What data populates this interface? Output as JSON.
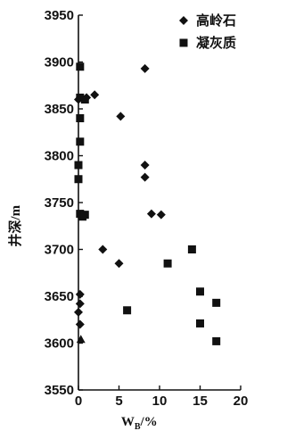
{
  "chart_data": {
    "type": "scatter",
    "ylabel": "井深/m",
    "xlabel": "W",
    "xlabel_sub": "B",
    "xlabel_unit": "/%",
    "ylim": [
      3550,
      3950
    ],
    "xlim": [
      0,
      20
    ],
    "x_ticks": [
      0,
      5,
      10,
      15,
      20
    ],
    "y_ticks": [
      3550,
      3600,
      3650,
      3700,
      3750,
      3800,
      3850,
      3900,
      3950
    ],
    "x_tick_labels": [
      "0",
      "5",
      "10",
      "15",
      "20"
    ],
    "y_tick_labels": [
      "3550",
      "3600",
      "3650",
      "3700",
      "3750",
      "3800",
      "3850",
      "3900",
      "3950"
    ],
    "legend_position": "top-right",
    "series": [
      {
        "name": "高岭石",
        "marker": "diamond",
        "points": [
          {
            "x": 8.2,
            "y": 3893
          },
          {
            "x": 2.0,
            "y": 3865
          },
          {
            "x": 1.0,
            "y": 3862
          },
          {
            "x": 0.0,
            "y": 3860
          },
          {
            "x": 5.2,
            "y": 3842
          },
          {
            "x": 8.2,
            "y": 3790
          },
          {
            "x": 8.2,
            "y": 3777
          },
          {
            "x": 9.0,
            "y": 3738
          },
          {
            "x": 10.2,
            "y": 3737
          },
          {
            "x": 3.0,
            "y": 3700
          },
          {
            "x": 5.0,
            "y": 3685
          },
          {
            "x": 0.2,
            "y": 3652
          },
          {
            "x": 0.2,
            "y": 3642
          },
          {
            "x": 0.0,
            "y": 3633
          },
          {
            "x": 0.2,
            "y": 3620
          }
        ]
      },
      {
        "name": "凝灰质",
        "marker": "square",
        "points": [
          {
            "x": 0.2,
            "y": 3895
          },
          {
            "x": 0.2,
            "y": 3862
          },
          {
            "x": 0.8,
            "y": 3860
          },
          {
            "x": 0.2,
            "y": 3840
          },
          {
            "x": 0.2,
            "y": 3815
          },
          {
            "x": 0.0,
            "y": 3790
          },
          {
            "x": 0.0,
            "y": 3775
          },
          {
            "x": 0.2,
            "y": 3738
          },
          {
            "x": 0.5,
            "y": 3735
          },
          {
            "x": 0.8,
            "y": 3737
          },
          {
            "x": 14.0,
            "y": 3700
          },
          {
            "x": 11.0,
            "y": 3685
          },
          {
            "x": 15.0,
            "y": 3655
          },
          {
            "x": 17.0,
            "y": 3643
          },
          {
            "x": 6.0,
            "y": 3635
          },
          {
            "x": 15.0,
            "y": 3621
          },
          {
            "x": 17.0,
            "y": 3602
          }
        ]
      },
      {
        "name": "",
        "marker": "triangle",
        "points": [
          {
            "x": 0.3,
            "y": 3604
          }
        ]
      }
    ]
  }
}
